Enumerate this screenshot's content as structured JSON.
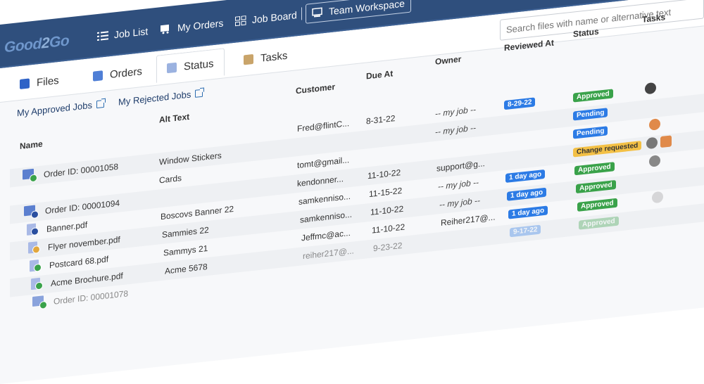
{
  "app": {
    "logo_a": "Good",
    "logo_b": "2",
    "logo_c": "Go"
  },
  "nav": {
    "job_list": "Job List",
    "my_orders": "My Orders",
    "job_board": "Job Board",
    "team_workspace": "Team Workspace"
  },
  "tabs": {
    "files": "Files",
    "orders": "Orders",
    "status": "Status",
    "tasks": "Tasks"
  },
  "search": {
    "placeholder": "Search files with name or alternative text"
  },
  "links": {
    "approved": "My Approved Jobs",
    "rejected": "My Rejected Jobs"
  },
  "columns": {
    "name": "Name",
    "alt_text": "Alt Text",
    "customer": "Customer",
    "due_at": "Due At",
    "owner": "Owner",
    "reviewed_at": "Reviewed At",
    "status": "Status",
    "tasks": "Tasks"
  },
  "rows": [
    {
      "name": "",
      "alt": "",
      "customer": "Fred@flintC...",
      "due": "8-31-22",
      "owner": "-- my job --",
      "reviewed": "8-29-22",
      "status": "Approved"
    },
    {
      "name": "Order ID: 00001058",
      "alt": "Window Stickers",
      "customer": "",
      "due": "",
      "owner": "-- my job --",
      "reviewed": "",
      "status": "Pending"
    },
    {
      "name": "Order ID: 00001094",
      "alt": "Cards",
      "customer": "tomt@gmail...",
      "due": "",
      "owner": "",
      "reviewed": "",
      "status": "Pending"
    },
    {
      "name": "",
      "alt": "",
      "customer": "kendonner...",
      "due": "11-10-22",
      "owner": "support@g...",
      "reviewed": "",
      "status": "Change requested"
    },
    {
      "name": "Banner.pdf",
      "alt": "Boscovs Banner 22",
      "customer": "samkenniso...",
      "due": "11-15-22",
      "owner": "-- my job --",
      "reviewed": "1 day ago",
      "status": "Approved"
    },
    {
      "name": "Flyer november.pdf",
      "alt": "Sammies 22",
      "customer": "samkenniso...",
      "due": "11-10-22",
      "owner": "-- my job --",
      "reviewed": "1 day ago",
      "status": "Approved"
    },
    {
      "name": "Postcard 68.pdf",
      "alt": "Sammys 21",
      "customer": "Jeffmc@ac...",
      "due": "11-10-22",
      "owner": "Reiher217@...",
      "reviewed": "1 day ago",
      "status": "Approved"
    },
    {
      "name": "Acme Brochure.pdf",
      "alt": "Acme 5678",
      "customer": "reiher217@...",
      "due": "9-23-22",
      "owner": "",
      "reviewed": "9-17-22",
      "status": "Approved"
    },
    {
      "name": "Order ID: 00001078",
      "alt": "",
      "customer": "",
      "due": "",
      "owner": "",
      "reviewed": "",
      "status": ""
    }
  ],
  "colors": {
    "navbar": "#2f4f7d",
    "approved": "#3aa24a",
    "pending": "#2c7be5",
    "change": "#f3c045"
  }
}
